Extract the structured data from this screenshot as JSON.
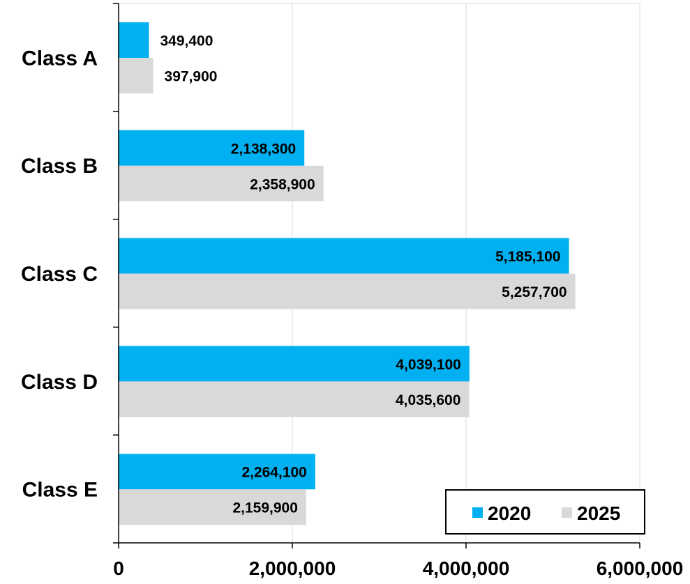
{
  "chart_data": {
    "type": "bar",
    "orientation": "horizontal",
    "title": "",
    "xlabel": "",
    "ylabel": "",
    "categories": [
      "Class A",
      "Class B",
      "Class C",
      "Class D",
      "Class E"
    ],
    "series": [
      {
        "name": "2020",
        "color": "#00B0F0",
        "values": [
          349400,
          2138300,
          5185100,
          4039100,
          2264100
        ],
        "labels": [
          "349,400",
          "2,138,300",
          "5,185,100",
          "4,039,100",
          "2,264,100"
        ]
      },
      {
        "name": "2025",
        "color": "#D9D9D9",
        "values": [
          397900,
          2358900,
          5257700,
          4035600,
          2159900
        ],
        "labels": [
          "397,900",
          "2,358,900",
          "5,257,700",
          "4,035,600",
          "2,159,900"
        ]
      }
    ],
    "xlim": [
      0,
      6000000
    ],
    "x_ticks": [
      0,
      2000000,
      4000000,
      6000000
    ],
    "x_tick_labels": [
      "0",
      "2,000,000",
      "4,000,000",
      "6,000,000"
    ],
    "gridlines": "vertical",
    "legend_position": "bottom-right"
  }
}
